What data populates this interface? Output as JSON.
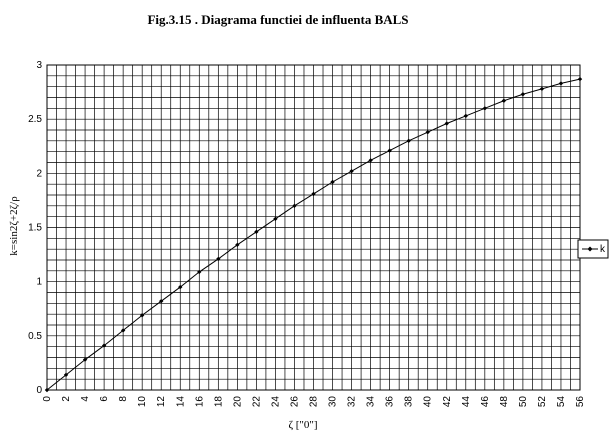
{
  "chart_data": {
    "type": "line",
    "title": "Fig.3.15 . Diagrama functiei de influenta BALS",
    "xlabel": "ζ [\"0\"]",
    "ylabel": "k=sin2ζ+2ζ/ρ",
    "x": [
      0,
      2,
      4,
      6,
      8,
      10,
      12,
      14,
      16,
      18,
      20,
      22,
      24,
      26,
      28,
      30,
      32,
      34,
      36,
      38,
      40,
      42,
      44,
      46,
      48,
      50,
      52,
      54,
      56
    ],
    "x_ticks": [
      "0",
      "2",
      "4",
      "6",
      "8",
      "10",
      "12",
      "14",
      "16",
      "18",
      "20",
      "22",
      "24",
      "26",
      "28",
      "30",
      "32",
      "34",
      "36",
      "38",
      "40",
      "42",
      "44",
      "46",
      "48",
      "50",
      "52",
      "54",
      "56"
    ],
    "y_ticks": [
      "0",
      "0.5",
      "1",
      "1.5",
      "2",
      "2.5",
      "3"
    ],
    "xlim": [
      0,
      56
    ],
    "ylim": [
      0,
      3
    ],
    "grid": true,
    "legend_position": "right",
    "series": [
      {
        "name": "k",
        "color": "#000000",
        "marker": "diamond",
        "values": [
          0.0,
          0.14,
          0.28,
          0.41,
          0.55,
          0.69,
          0.82,
          0.95,
          1.09,
          1.21,
          1.34,
          1.46,
          1.58,
          1.7,
          1.81,
          1.92,
          2.02,
          2.12,
          2.21,
          2.3,
          2.38,
          2.46,
          2.53,
          2.6,
          2.67,
          2.73,
          2.78,
          2.83,
          2.87
        ]
      }
    ]
  }
}
